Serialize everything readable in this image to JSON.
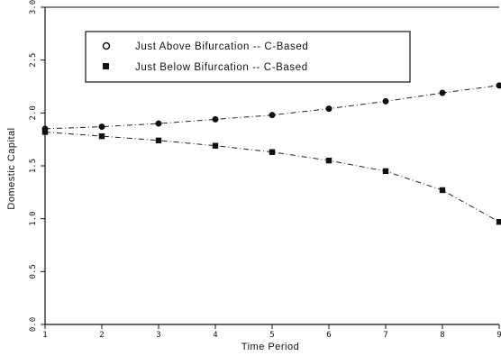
{
  "chart_data": {
    "type": "line",
    "title": "",
    "xlabel": "Time Period",
    "ylabel": "Domestic Capital",
    "xlim": [
      1,
      9
    ],
    "ylim": [
      0,
      3
    ],
    "xticks": [
      "1",
      "2",
      "3",
      "4",
      "5",
      "6",
      "7",
      "8",
      "9"
    ],
    "yticks": [
      "0.0",
      "0.5",
      "1.0",
      "1.5",
      "2.0",
      "2.5",
      "3.0"
    ],
    "grid": false,
    "legend_position": "top-left",
    "x": [
      1,
      2,
      3,
      4,
      5,
      6,
      7,
      8,
      9
    ],
    "series": [
      {
        "name": "Just Above Bifurcation -- C-Based",
        "marker": "circle",
        "values": [
          1.85,
          1.87,
          1.9,
          1.94,
          1.98,
          2.04,
          2.11,
          2.19,
          2.26
        ]
      },
      {
        "name": "Just Below Bifurcation -- C-Based",
        "marker": "square",
        "values": [
          1.82,
          1.78,
          1.74,
          1.69,
          1.63,
          1.55,
          1.45,
          1.27,
          0.97
        ]
      }
    ]
  }
}
